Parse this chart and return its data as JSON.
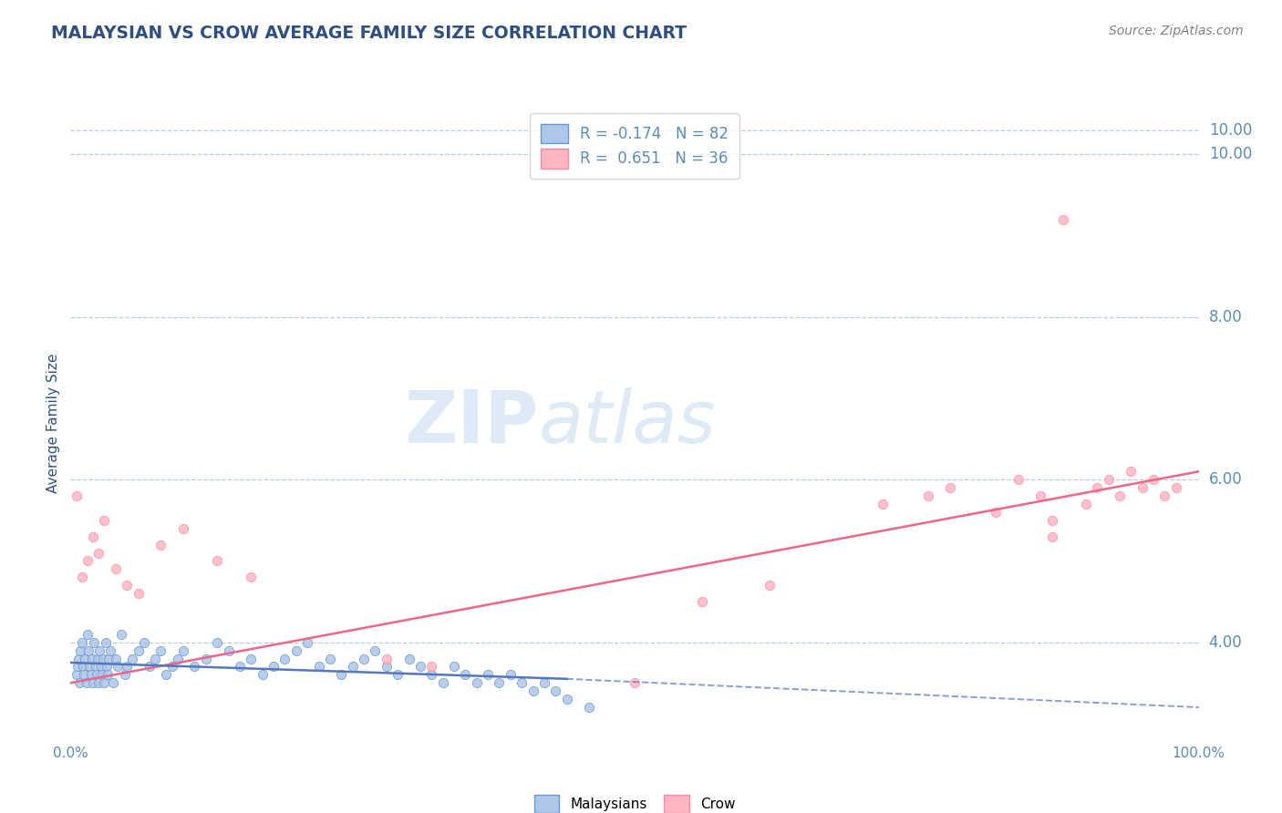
{
  "title": "MALAYSIAN VS CROW AVERAGE FAMILY SIZE CORRELATION CHART",
  "source": "Source: ZipAtlas.com",
  "ylabel": "Average Family Size",
  "xmin": 0.0,
  "xmax": 1.0,
  "ymin": 2.8,
  "ymax": 10.6,
  "yticks_right": [
    4.0,
    6.0,
    8.0,
    10.0
  ],
  "legend_blue_label": "R = -0.174   N = 82",
  "legend_pink_label": "R =  0.651   N = 36",
  "blue_marker_face": "#AEC6E8",
  "blue_marker_edge": "#6699CC",
  "pink_marker_face": "#FFB6C1",
  "pink_marker_edge": "#FF88AA",
  "blue_line_color": "#5577BB",
  "pink_line_color": "#EE6688",
  "title_color": "#2F4F7F",
  "axis_color": "#5B8DB8",
  "grid_color": "#BBCCDD",
  "tick_color": "#5B8DB8",
  "blue_scatter_x": [
    0.005,
    0.006,
    0.007,
    0.008,
    0.009,
    0.01,
    0.011,
    0.012,
    0.013,
    0.014,
    0.015,
    0.016,
    0.017,
    0.018,
    0.019,
    0.02,
    0.021,
    0.022,
    0.023,
    0.024,
    0.025,
    0.026,
    0.027,
    0.028,
    0.029,
    0.03,
    0.031,
    0.032,
    0.033,
    0.034,
    0.035,
    0.038,
    0.04,
    0.042,
    0.045,
    0.048,
    0.05,
    0.055,
    0.06,
    0.065,
    0.07,
    0.075,
    0.08,
    0.085,
    0.09,
    0.095,
    0.1,
    0.11,
    0.12,
    0.13,
    0.14,
    0.15,
    0.16,
    0.17,
    0.18,
    0.19,
    0.2,
    0.21,
    0.22,
    0.23,
    0.24,
    0.25,
    0.26,
    0.27,
    0.28,
    0.29,
    0.3,
    0.31,
    0.32,
    0.33,
    0.34,
    0.35,
    0.36,
    0.37,
    0.38,
    0.39,
    0.4,
    0.41,
    0.42,
    0.43,
    0.44,
    0.46
  ],
  "blue_scatter_y": [
    3.6,
    3.7,
    3.8,
    3.5,
    3.9,
    4.0,
    3.7,
    3.6,
    3.8,
    3.5,
    4.1,
    3.9,
    3.7,
    3.6,
    3.8,
    3.5,
    4.0,
    3.7,
    3.6,
    3.8,
    3.5,
    3.9,
    3.7,
    3.6,
    3.8,
    3.5,
    4.0,
    3.7,
    3.6,
    3.8,
    3.9,
    3.5,
    3.8,
    3.7,
    4.1,
    3.6,
    3.7,
    3.8,
    3.9,
    4.0,
    3.7,
    3.8,
    3.9,
    3.6,
    3.7,
    3.8,
    3.9,
    3.7,
    3.8,
    4.0,
    3.9,
    3.7,
    3.8,
    3.6,
    3.7,
    3.8,
    3.9,
    4.0,
    3.7,
    3.8,
    3.6,
    3.7,
    3.8,
    3.9,
    3.7,
    3.6,
    3.8,
    3.7,
    3.6,
    3.5,
    3.7,
    3.6,
    3.5,
    3.6,
    3.5,
    3.6,
    3.5,
    3.4,
    3.5,
    3.4,
    3.3,
    3.2
  ],
  "pink_scatter_x": [
    0.005,
    0.01,
    0.015,
    0.02,
    0.025,
    0.03,
    0.04,
    0.05,
    0.06,
    0.08,
    0.1,
    0.13,
    0.16,
    0.28,
    0.32,
    0.5,
    0.56,
    0.72,
    0.76,
    0.78,
    0.82,
    0.84,
    0.86,
    0.87,
    0.88,
    0.9,
    0.91,
    0.92,
    0.93,
    0.94,
    0.95,
    0.96,
    0.97,
    0.98,
    0.87,
    0.62
  ],
  "pink_scatter_y": [
    5.8,
    4.8,
    5.0,
    5.3,
    5.1,
    5.5,
    4.9,
    4.7,
    4.6,
    5.2,
    5.4,
    5.0,
    4.8,
    3.8,
    3.7,
    3.5,
    4.5,
    5.7,
    5.8,
    5.9,
    5.6,
    6.0,
    5.8,
    5.5,
    9.2,
    5.7,
    5.9,
    6.0,
    5.8,
    6.1,
    5.9,
    6.0,
    5.8,
    5.9,
    5.3,
    4.7
  ],
  "pink_line_x0": 0.0,
  "pink_line_x1": 1.0,
  "pink_line_y0": 3.5,
  "pink_line_y1": 6.1,
  "blue_line_solid_x0": 0.0,
  "blue_line_solid_x1": 0.44,
  "blue_line_solid_y0": 3.75,
  "blue_line_solid_y1": 3.55,
  "blue_line_dash_x0": 0.44,
  "blue_line_dash_x1": 1.0,
  "blue_line_dash_y0": 3.55,
  "blue_line_dash_y1": 3.2
}
